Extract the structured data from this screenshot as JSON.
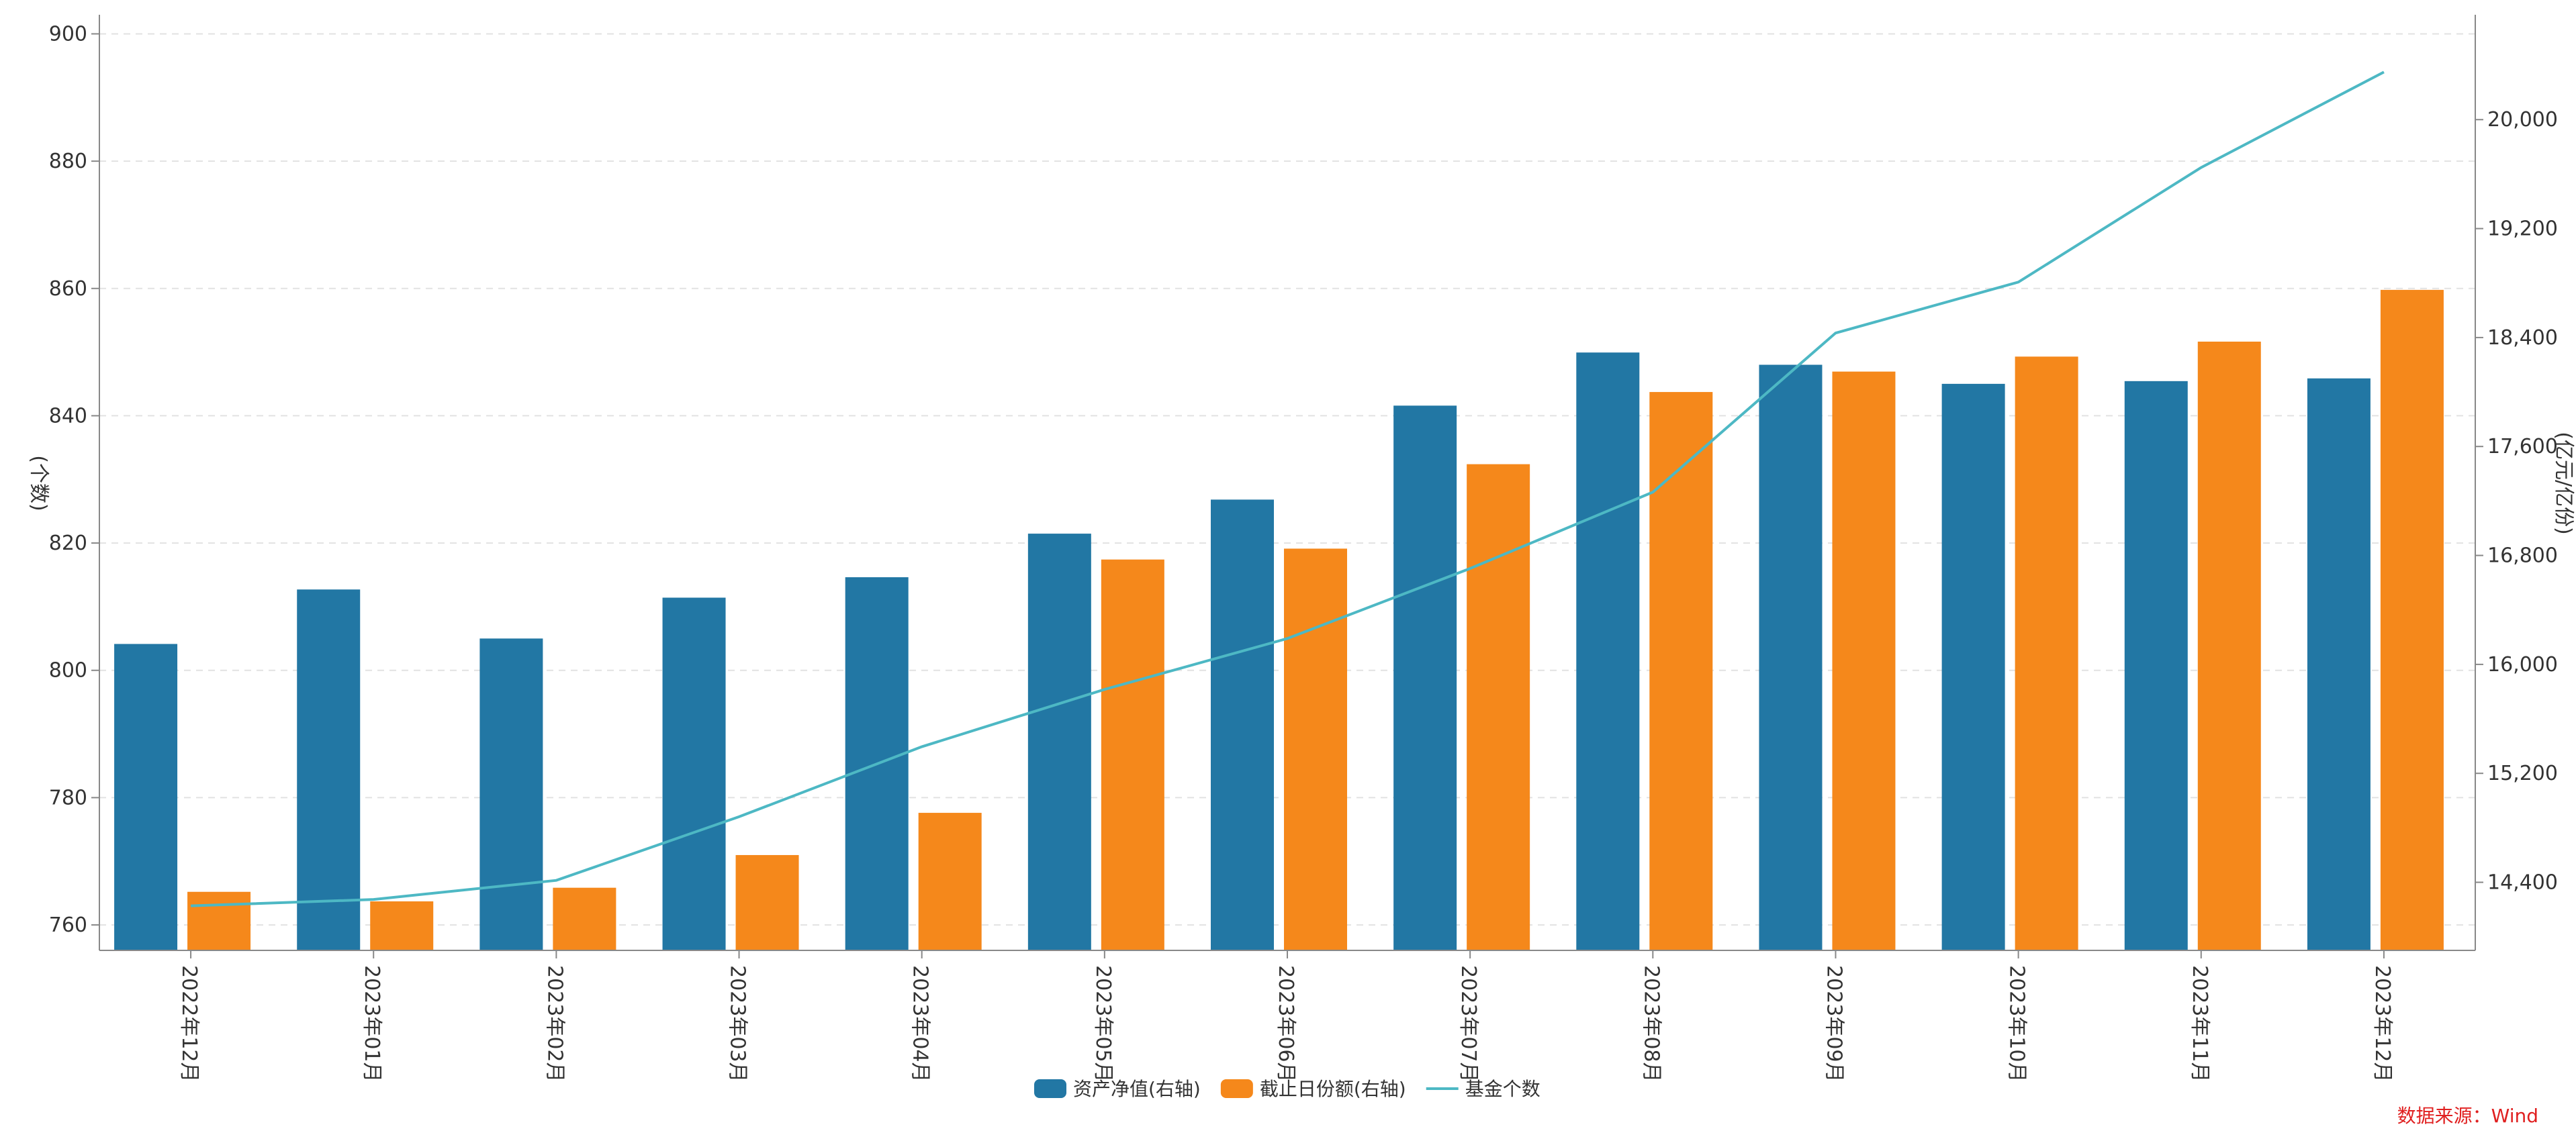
{
  "chart_data": {
    "type": "bar",
    "categories": [
      "2022年12月",
      "2023年01月",
      "2023年02月",
      "2023年03月",
      "2023年04月",
      "2023年05月",
      "2023年06月",
      "2023年07月",
      "2023年08月",
      "2023年09月",
      "2023年10月",
      "2023年11月",
      "2023年12月"
    ],
    "series": [
      {
        "name": "资产净值(右轴)",
        "type": "bar",
        "axis": "right",
        "color": "#2277a4",
        "values": [
          16150,
          16550,
          16190,
          16490,
          16640,
          16960,
          17210,
          17900,
          18290,
          18200,
          18060,
          18080,
          18100
        ]
      },
      {
        "name": "截止日份额(右轴)",
        "type": "bar",
        "axis": "right",
        "color": "#f5881b",
        "values": [
          14330,
          14260,
          14360,
          14600,
          14910,
          16770,
          16850,
          17470,
          18000,
          18150,
          18260,
          18370,
          18750
        ]
      },
      {
        "name": "基金个数",
        "type": "line",
        "axis": "left",
        "color": "#4db8c4",
        "values": [
          763,
          764,
          767,
          777,
          788,
          797,
          805,
          816,
          828,
          853,
          861,
          879,
          894
        ]
      }
    ],
    "ylabel_left": "(个数)",
    "ylabel_right": "(亿元/亿份)",
    "ylim_left": [
      756,
      903
    ],
    "ylim_right": [
      13900,
      20770
    ],
    "yticks_left": [
      "760",
      "780",
      "800",
      "820",
      "840",
      "860",
      "880",
      "900"
    ],
    "yticks_right": [
      "14,400",
      "15,200",
      "16,000",
      "16,800",
      "17,600",
      "18,400",
      "19,200",
      "20,000"
    ],
    "grid": true,
    "legend_position": "bottom"
  },
  "source_note": {
    "text": "数据来源：Wind",
    "color": "#e02020"
  }
}
